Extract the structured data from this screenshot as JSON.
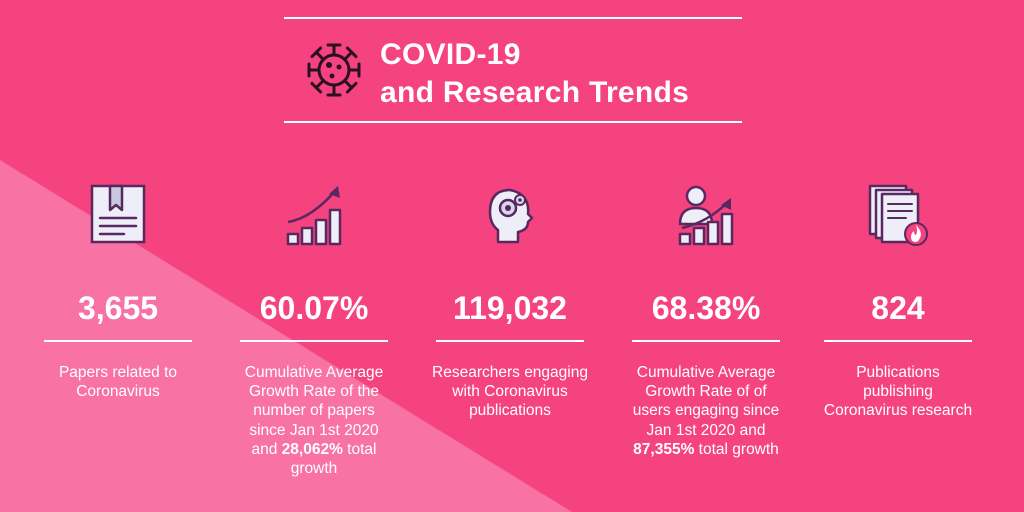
{
  "colors": {
    "background": "#f5437f",
    "band": "#f873a3",
    "text": "#ffffff",
    "icon_fill": "#eeeef8",
    "icon_stroke": "#5a2860",
    "icon_accent": "#f5437f"
  },
  "header": {
    "title_line1": "COVID-19",
    "title_line2": "and Research Trends",
    "icon": "virus-icon"
  },
  "stats": [
    {
      "icon": "document-bookmark-icon",
      "value": "3,655",
      "desc": "Papers related to Coronavirus"
    },
    {
      "icon": "growth-chart-icon",
      "value": "60.07%",
      "desc_pre": "Cumulative Average Growth Rate of the number of papers since Jan 1st 2020 and ",
      "desc_bold": "28,062%",
      "desc_post": " total growth"
    },
    {
      "icon": "head-gears-icon",
      "value": "119,032",
      "desc": "Researchers engaging with Coronavirus publications"
    },
    {
      "icon": "user-growth-icon",
      "value": "68.38%",
      "desc_pre": "Cumulative Average Growth Rate of of users engaging since Jan 1st 2020 and ",
      "desc_bold": "87,355%",
      "desc_post": " total growth"
    },
    {
      "icon": "hot-publications-icon",
      "value": "824",
      "desc": "Publications publishing Coronavirus research"
    }
  ]
}
